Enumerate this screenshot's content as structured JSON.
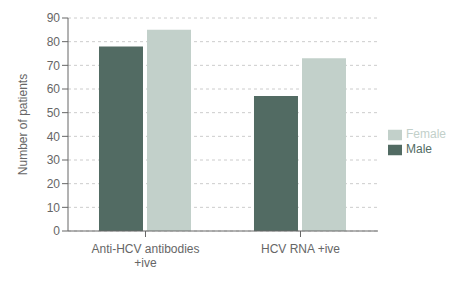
{
  "chart_data": {
    "type": "bar",
    "categories": [
      "Anti-HCV antibodies\n+ive",
      "HCV RNA +ive"
    ],
    "series": [
      {
        "name": "Male",
        "color": "#526b63",
        "values": [
          78,
          57
        ]
      },
      {
        "name": "Female",
        "color": "#c2d0ca",
        "values": [
          85,
          73
        ]
      }
    ],
    "ylabel": "Number of patients",
    "ylim": [
      0,
      90
    ],
    "yticks": [
      0,
      10,
      20,
      30,
      40,
      50,
      60,
      70,
      80,
      90
    ],
    "grid": true,
    "legend": "right"
  }
}
